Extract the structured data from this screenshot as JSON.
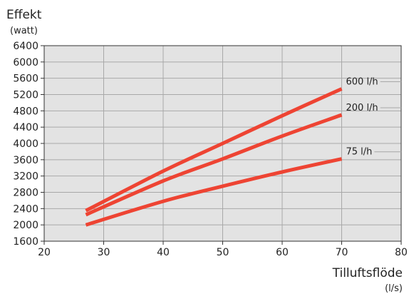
{
  "chart_data": {
    "type": "line",
    "ylabel": "Effekt",
    "yunit": "(watt)",
    "xlabel": "Tilluftsflöde",
    "xunit": "(l/s)",
    "xlim": [
      20,
      80
    ],
    "ylim": [
      1600,
      6400
    ],
    "xticks": [
      20,
      30,
      40,
      50,
      60,
      70,
      80
    ],
    "yticks": [
      1600,
      2000,
      2400,
      2800,
      3200,
      3600,
      4000,
      4400,
      4800,
      5200,
      5600,
      6000,
      6400
    ],
    "grid": true,
    "series": [
      {
        "name": "600 l/h",
        "x": [
          27,
          40,
          50,
          60,
          70
        ],
        "values": [
          2350,
          3320,
          4000,
          4680,
          5340
        ]
      },
      {
        "name": "200 l/h",
        "x": [
          27,
          40,
          50,
          60,
          70
        ],
        "values": [
          2250,
          3080,
          3620,
          4180,
          4700
        ]
      },
      {
        "name": "75 l/h",
        "x": [
          27,
          40,
          50,
          60,
          70
        ],
        "values": [
          2000,
          2580,
          2950,
          3300,
          3620
        ]
      }
    ]
  },
  "colors": {
    "series_line": "#ee4433",
    "plot_background": "#e3e3e3",
    "grid_line": "#a8a8a8",
    "axis_line": "#333333"
  }
}
